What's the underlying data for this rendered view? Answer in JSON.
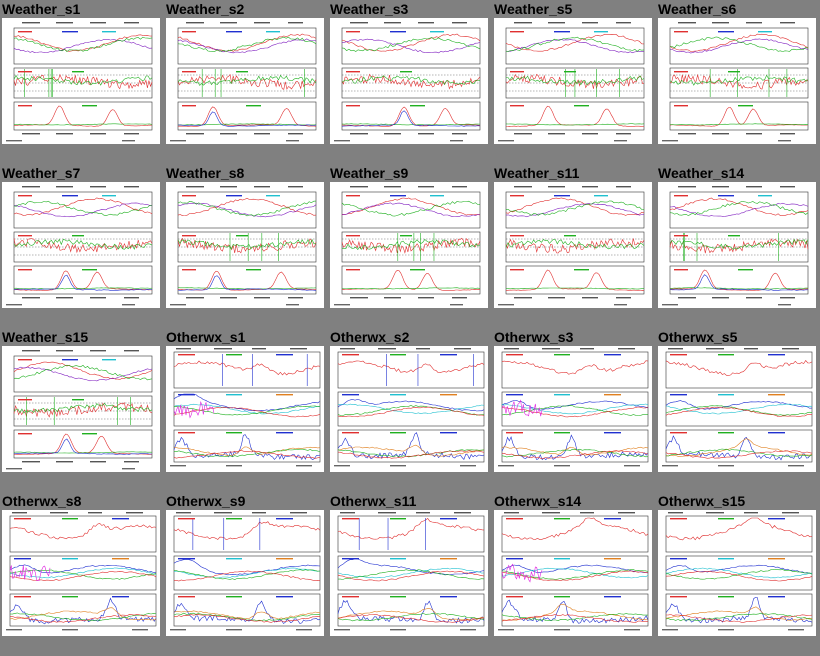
{
  "page": {
    "background": "#808080"
  },
  "grid": {
    "rows": [
      [
        {
          "label": "Weather_s1",
          "type": "weather"
        },
        {
          "label": "Weather_s2",
          "type": "weather"
        },
        {
          "label": "Weather_s3",
          "type": "weather"
        },
        {
          "label": "Weather_s5",
          "type": "weather"
        },
        {
          "label": "Weather_s6",
          "type": "weather"
        }
      ],
      [
        {
          "label": "Weather_s7",
          "type": "weather"
        },
        {
          "label": "Weather_s8",
          "type": "weather"
        },
        {
          "label": "Weather_s9",
          "type": "weather"
        },
        {
          "label": "Weather_s11",
          "type": "weather"
        },
        {
          "label": "Weather_s14",
          "type": "weather"
        }
      ],
      [
        {
          "label": "Weather_s15",
          "type": "weather"
        },
        {
          "label": "Otherwx_s1",
          "type": "otherwx"
        },
        {
          "label": "Otherwx_s2",
          "type": "otherwx"
        },
        {
          "label": "Otherwx_s3",
          "type": "otherwx"
        },
        {
          "label": "Otherwx_s5",
          "type": "otherwx"
        }
      ],
      [
        {
          "label": "Otherwx_s8",
          "type": "otherwx"
        },
        {
          "label": "Otherwx_s9",
          "type": "otherwx"
        },
        {
          "label": "Otherwx_s11",
          "type": "otherwx"
        },
        {
          "label": "Otherwx_s14",
          "type": "otherwx"
        },
        {
          "label": "Otherwx_s15",
          "type": "otherwx"
        }
      ]
    ]
  },
  "colors": {
    "red": "#e03030",
    "green": "#20b020",
    "blue": "#2030d0",
    "purple": "#8020c0",
    "cyan": "#20c0d0",
    "magenta": "#e020e0",
    "orange": "#e08020",
    "frame": "#333333"
  }
}
